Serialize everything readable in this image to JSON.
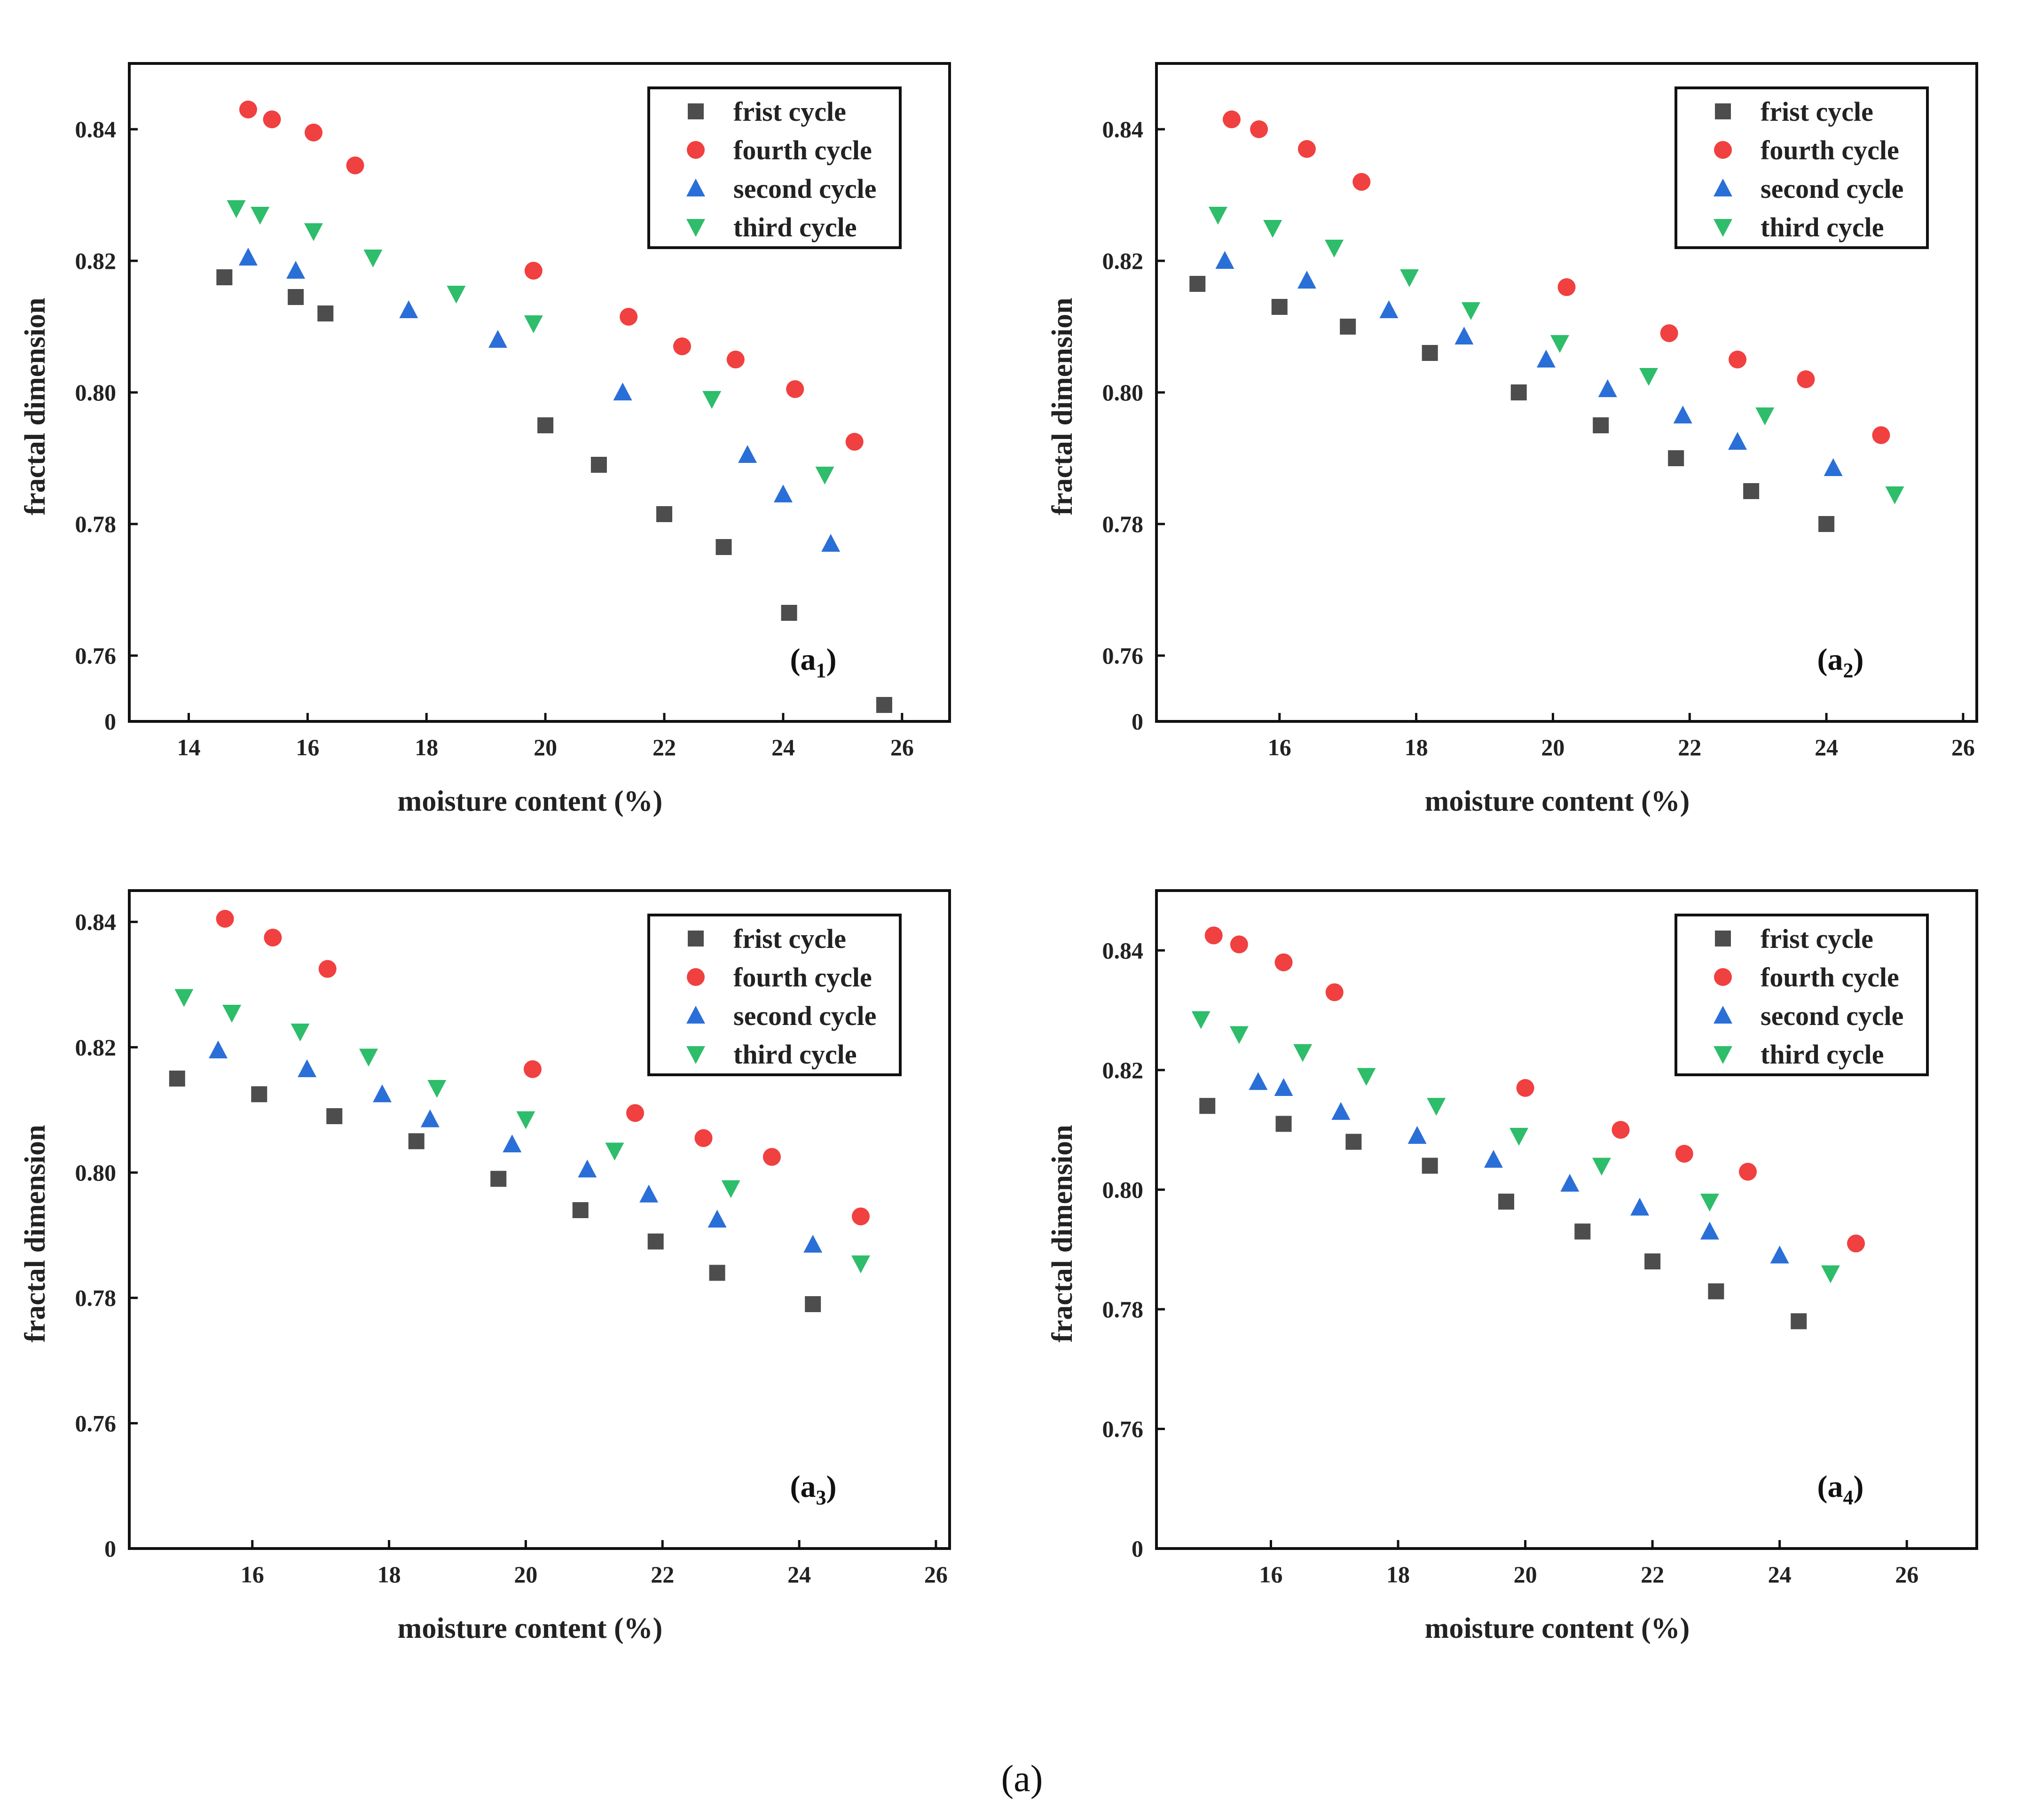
{
  "figure_caption": "(a)",
  "colors": {
    "frist cycle": "#4d4d4d",
    "fourth cycle": "#f04040",
    "second cycle": "#2a6fd8",
    "third cycle": "#2ebd6a",
    "axis": "#111111"
  },
  "chart_data": [
    {
      "type": "scatter",
      "panel_label": "a",
      "panel_sub": "1",
      "xlabel": "moisture content (%)",
      "ylabel": "fractal dimension",
      "xlim": [
        13,
        26.8
      ],
      "ylim": [
        0.75,
        0.85
      ],
      "xticks": [
        "14",
        "16",
        "18",
        "20",
        "22",
        "24",
        "26"
      ],
      "ytick_labels": [
        "0",
        "0.76",
        "0.78",
        "0.80",
        "0.82",
        "0.84"
      ],
      "ytick_values": [
        0.75,
        0.76,
        0.78,
        0.8,
        0.82,
        0.84
      ],
      "legend_position": "top-right",
      "series": [
        {
          "name": "frist cycle",
          "marker": "square",
          "x": [
            14.6,
            15.8,
            16.3,
            20.0,
            20.9,
            22.0,
            23.0,
            24.1,
            25.7
          ],
          "y": [
            0.8175,
            0.8145,
            0.812,
            0.795,
            0.789,
            0.7815,
            0.7765,
            0.7665,
            0.7525
          ]
        },
        {
          "name": "fourth cycle",
          "marker": "circle",
          "x": [
            15.0,
            15.4,
            16.1,
            16.8,
            19.8,
            21.4,
            22.3,
            23.2,
            24.2,
            25.2
          ],
          "y": [
            0.843,
            0.8415,
            0.8395,
            0.8345,
            0.8185,
            0.8115,
            0.807,
            0.805,
            0.8005,
            0.7925
          ]
        },
        {
          "name": "second cycle",
          "marker": "triangle-up",
          "x": [
            15.0,
            15.8,
            17.7,
            19.2,
            21.3,
            23.4,
            24.0,
            24.8
          ],
          "y": [
            0.8205,
            0.8185,
            0.8125,
            0.808,
            0.8,
            0.7905,
            0.7845,
            0.777
          ]
        },
        {
          "name": "third cycle",
          "marker": "triangle-down",
          "x": [
            14.8,
            15.2,
            16.1,
            17.1,
            18.5,
            19.8,
            22.8,
            24.7
          ],
          "y": [
            0.828,
            0.827,
            0.8245,
            0.8205,
            0.815,
            0.8105,
            0.799,
            0.7875
          ]
        }
      ]
    },
    {
      "type": "scatter",
      "panel_label": "a",
      "panel_sub": "2",
      "xlabel": "moisture content (%)",
      "ylabel": "fractal dimension",
      "xlim": [
        14.2,
        26.2
      ],
      "ylim": [
        0.75,
        0.85
      ],
      "xticks": [
        "16",
        "18",
        "20",
        "22",
        "24",
        "26"
      ],
      "ytick_labels": [
        "0",
        "0.76",
        "0.78",
        "0.80",
        "0.82",
        "0.84"
      ],
      "ytick_values": [
        0.75,
        0.76,
        0.78,
        0.8,
        0.82,
        0.84
      ],
      "legend_position": "top-right",
      "series": [
        {
          "name": "frist cycle",
          "marker": "square",
          "x": [
            14.8,
            16.0,
            17.0,
            18.2,
            19.5,
            20.7,
            21.8,
            22.9,
            24.0
          ],
          "y": [
            0.8165,
            0.813,
            0.81,
            0.806,
            0.8,
            0.795,
            0.79,
            0.785,
            0.78
          ]
        },
        {
          "name": "fourth cycle",
          "marker": "circle",
          "x": [
            15.3,
            15.7,
            16.4,
            17.2,
            20.2,
            21.7,
            22.7,
            23.7,
            24.8
          ],
          "y": [
            0.8415,
            0.84,
            0.837,
            0.832,
            0.816,
            0.809,
            0.805,
            0.802,
            0.7935
          ]
        },
        {
          "name": "second cycle",
          "marker": "triangle-up",
          "x": [
            15.2,
            16.4,
            17.6,
            18.7,
            19.9,
            20.8,
            21.9,
            22.7,
            24.1
          ],
          "y": [
            0.82,
            0.817,
            0.8125,
            0.8085,
            0.805,
            0.8005,
            0.7965,
            0.7925,
            0.7885
          ]
        },
        {
          "name": "third cycle",
          "marker": "triangle-down",
          "x": [
            15.1,
            15.9,
            16.8,
            17.9,
            18.8,
            20.1,
            21.4,
            23.1,
            25.0
          ],
          "y": [
            0.827,
            0.825,
            0.822,
            0.8175,
            0.8125,
            0.8075,
            0.8025,
            0.7965,
            0.7845
          ]
        }
      ]
    },
    {
      "type": "scatter",
      "panel_label": "a",
      "panel_sub": "3",
      "xlabel": "moisture content (%)",
      "ylabel": "fractal dimension",
      "xlim": [
        14.2,
        26.2
      ],
      "ylim": [
        0.74,
        0.845
      ],
      "xticks": [
        "16",
        "18",
        "20",
        "22",
        "24",
        "26"
      ],
      "ytick_labels": [
        "0",
        "0.76",
        "0.78",
        "0.80",
        "0.82",
        "0.84"
      ],
      "ytick_values": [
        0.74,
        0.76,
        0.78,
        0.8,
        0.82,
        0.84
      ],
      "legend_position": "top-right",
      "series": [
        {
          "name": "frist cycle",
          "marker": "square",
          "x": [
            14.9,
            16.1,
            17.2,
            18.4,
            19.6,
            20.8,
            21.9,
            22.8,
            24.2
          ],
          "y": [
            0.815,
            0.8125,
            0.809,
            0.805,
            0.799,
            0.794,
            0.789,
            0.784,
            0.779
          ]
        },
        {
          "name": "fourth cycle",
          "marker": "circle",
          "x": [
            15.6,
            16.3,
            17.1,
            20.1,
            21.6,
            22.6,
            23.6,
            24.9
          ],
          "y": [
            0.8405,
            0.8375,
            0.8325,
            0.8165,
            0.8095,
            0.8055,
            0.8025,
            0.793
          ]
        },
        {
          "name": "second cycle",
          "marker": "triangle-up",
          "x": [
            15.5,
            16.8,
            17.9,
            18.6,
            19.8,
            20.9,
            21.8,
            22.8,
            24.2
          ],
          "y": [
            0.8195,
            0.8165,
            0.8125,
            0.8085,
            0.8045,
            0.8005,
            0.7965,
            0.7925,
            0.7885
          ]
        },
        {
          "name": "third cycle",
          "marker": "triangle-down",
          "x": [
            15.0,
            15.7,
            16.7,
            17.7,
            18.7,
            20.0,
            21.3,
            23.0,
            24.9
          ],
          "y": [
            0.828,
            0.8255,
            0.8225,
            0.8185,
            0.8135,
            0.8085,
            0.8035,
            0.7975,
            0.7855
          ]
        }
      ]
    },
    {
      "type": "scatter",
      "panel_label": "a",
      "panel_sub": "4",
      "xlabel": "moisture content (%)",
      "ylabel": "fractal dimension",
      "xlim": [
        14.2,
        27.1
      ],
      "ylim": [
        0.74,
        0.85
      ],
      "xticks": [
        "16",
        "18",
        "20",
        "22",
        "24",
        "26"
      ],
      "ytick_labels": [
        "0",
        "0.76",
        "0.78",
        "0.80",
        "0.82",
        "0.84"
      ],
      "ytick_values": [
        0.74,
        0.76,
        0.78,
        0.8,
        0.82,
        0.84
      ],
      "legend_position": "top-right",
      "series": [
        {
          "name": "frist cycle",
          "marker": "square",
          "x": [
            15.0,
            16.2,
            17.3,
            18.5,
            19.7,
            20.9,
            22.0,
            23.0,
            24.3
          ],
          "y": [
            0.814,
            0.811,
            0.808,
            0.804,
            0.798,
            0.793,
            0.788,
            0.783,
            0.778
          ]
        },
        {
          "name": "fourth cycle",
          "marker": "circle",
          "x": [
            15.1,
            15.5,
            16.2,
            17.0,
            20.0,
            21.5,
            22.5,
            23.5,
            25.2
          ],
          "y": [
            0.8425,
            0.841,
            0.838,
            0.833,
            0.817,
            0.81,
            0.806,
            0.803,
            0.791
          ]
        },
        {
          "name": "second cycle",
          "marker": "triangle-up",
          "x": [
            15.8,
            16.2,
            17.1,
            18.3,
            19.5,
            20.7,
            21.8,
            22.9,
            24.0
          ],
          "y": [
            0.818,
            0.817,
            0.813,
            0.809,
            0.805,
            0.801,
            0.797,
            0.793,
            0.789
          ]
        },
        {
          "name": "third cycle",
          "marker": "triangle-down",
          "x": [
            14.9,
            15.5,
            16.5,
            17.5,
            18.6,
            19.9,
            21.2,
            22.9,
            24.8
          ],
          "y": [
            0.8285,
            0.826,
            0.823,
            0.819,
            0.814,
            0.809,
            0.804,
            0.798,
            0.786
          ]
        }
      ]
    }
  ]
}
